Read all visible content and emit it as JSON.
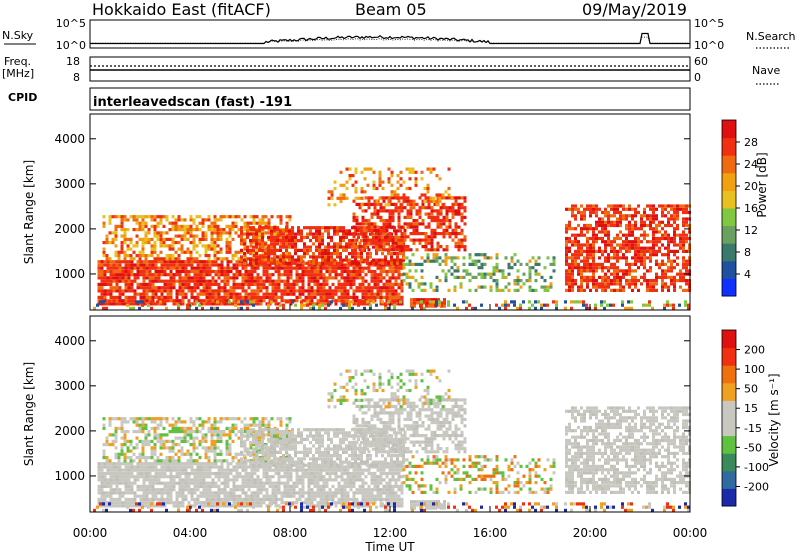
{
  "header": {
    "station": "Hokkaido East (fitACF)",
    "beam": "Beam 05",
    "date": "09/May/2019"
  },
  "top_panel": {
    "n_sky_label": "N.Sky",
    "n_sky_ticks": [
      "10^5",
      "10^0"
    ],
    "n_search_label": "N.Search",
    "n_search_ticks": [
      "10^5",
      "10^0"
    ],
    "freq_label": "Freq.",
    "freq_unit": "[MHz]",
    "freq_ticks": [
      "18",
      "8"
    ],
    "nave_label": "Nave",
    "nave_ticks": [
      "60",
      "0"
    ],
    "cpid_label": "CPID",
    "cpid_text": "interleavedscan (fast) -191"
  },
  "chart_data": [
    {
      "type": "heatmap",
      "name": "power",
      "ylabel": "Slant Range [km]",
      "yticks": [
        1000,
        2000,
        3000,
        4000
      ],
      "ylim": [
        200,
        4550
      ],
      "xlim_hours": [
        0,
        24
      ],
      "colorbar_label": "Power [dB]",
      "colorbar_ticks": [
        "4",
        "8",
        "12",
        "16",
        "20",
        "24",
        "28"
      ],
      "colorbar_colors": [
        "#1030ff",
        "#2050a0",
        "#3a7a6a",
        "#6aa060",
        "#80c840",
        "#e8c020",
        "#f0a010",
        "#f06a10",
        "#f03010",
        "#e01010"
      ]
    },
    {
      "type": "heatmap",
      "name": "velocity",
      "ylabel": "Slant Range [km]",
      "yticks": [
        1000,
        2000,
        3000,
        4000
      ],
      "ylim": [
        200,
        4550
      ],
      "xlim_hours": [
        0,
        24
      ],
      "colorbar_label": "Velocity [m s⁻¹]",
      "colorbar_ticks": [
        "200",
        "100",
        "50",
        "15",
        "-15",
        "-50",
        "-100",
        "-200"
      ],
      "colorbar_colors": [
        "#1a2aa8",
        "#2f6aa0",
        "#3a8a5a",
        "#60c040",
        "#c8c8c0",
        "#c8c8c0",
        "#f0a020",
        "#f07010",
        "#f03010",
        "#e01010"
      ]
    }
  ],
  "x_axis": {
    "ticks": [
      "00:00",
      "04:00",
      "08:00",
      "12:00",
      "16:00",
      "20:00",
      "00:00"
    ],
    "label": "Time UT"
  }
}
